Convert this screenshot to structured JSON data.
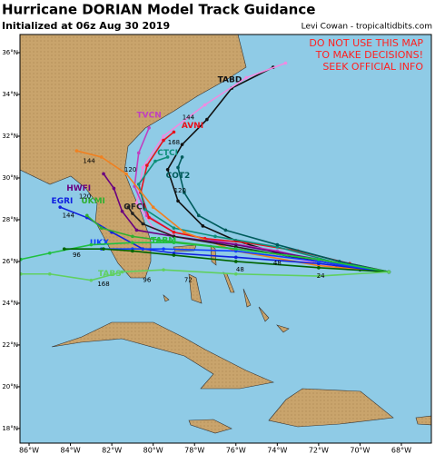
{
  "chart_data": {
    "type": "track-map",
    "title": "Hurricane DORIAN Model Track Guidance",
    "subtitle": "Initialized at 06z Aug 30 2019",
    "credit": "Levi Cowan - tropicaltidbits.com",
    "warning": [
      "DO NOT USE THIS MAP",
      "TO MAKE DECISIONS!",
      "SEEK OFFICIAL INFO"
    ],
    "xlim": [
      -86.44,
      -66.55
    ],
    "ylim": [
      17.3,
      36.87
    ],
    "xticks": [
      {
        "value": -86,
        "label": "86°W"
      },
      {
        "value": -84,
        "label": "84°W"
      },
      {
        "value": -82,
        "label": "82°W"
      },
      {
        "value": -80,
        "label": "80°W"
      },
      {
        "value": -78,
        "label": "78°W"
      },
      {
        "value": -76,
        "label": "76°W"
      },
      {
        "value": -74,
        "label": "74°W"
      },
      {
        "value": -72,
        "label": "72°W"
      },
      {
        "value": -70,
        "label": "70°W"
      },
      {
        "value": -68,
        "label": "68°W"
      }
    ],
    "yticks": [
      {
        "value": 18,
        "label": "18°N"
      },
      {
        "value": 20,
        "label": "20°N"
      },
      {
        "value": 22,
        "label": "22°N"
      },
      {
        "value": 24,
        "label": "24°N"
      },
      {
        "value": 26,
        "label": "26°N"
      },
      {
        "value": 28,
        "label": "28°N"
      },
      {
        "value": 30,
        "label": "30°N"
      },
      {
        "value": 32,
        "label": "32°N"
      },
      {
        "value": 34,
        "label": "34°N"
      },
      {
        "value": 36,
        "label": "36°N"
      }
    ],
    "series": [
      {
        "name": "TABD",
        "color": "#111111",
        "label_lon": -76.3,
        "label_lat": 34.7,
        "lon": [
          -68.6,
          -70,
          -72,
          -74,
          -76,
          -77.6,
          -78.8,
          -79.3,
          -78.6,
          -77.4,
          -76.2,
          -74.2
        ],
        "lat": [
          25.5,
          25.6,
          25.9,
          26.4,
          27,
          27.7,
          28.9,
          30.4,
          31.6,
          32.8,
          34.3,
          35.3
        ]
      },
      {
        "color": "#f08ae0",
        "lon": [
          -68.6,
          -71,
          -74,
          -76.5,
          -78.5,
          -80,
          -80.8,
          -80.5,
          -79.5,
          -77.5,
          -75.5,
          -73.6
        ],
        "lat": [
          25.5,
          25.7,
          26.3,
          26.8,
          27.1,
          27.6,
          28.8,
          30.5,
          32,
          33.5,
          34.8,
          35.5
        ]
      },
      {
        "name": "TVCN",
        "color": "#c040c0",
        "label_lon": -80.2,
        "label_lat": 33.0,
        "lon": [
          -68.6,
          -71,
          -74,
          -77,
          -79,
          -80.3,
          -80.9,
          -80.7,
          -80.2
        ],
        "lat": [
          25.5,
          25.8,
          26.5,
          27.0,
          27.4,
          28.2,
          29.6,
          31.2,
          32.4
        ]
      },
      {
        "name": "AVNI",
        "color": "#e8101a",
        "label_lon": -78.1,
        "label_lat": 32.5,
        "lon": [
          -68.6,
          -70.5,
          -73,
          -75.5,
          -77.5,
          -79,
          -80.2,
          -80.6,
          -80.3,
          -79.5,
          -79
        ],
        "lat": [
          25.5,
          25.9,
          26.5,
          26.9,
          27.1,
          27.4,
          28.1,
          29.3,
          30.6,
          31.8,
          32.2
        ]
      },
      {
        "name": "CTCI",
        "color": "#0e8f7a",
        "label_lon": -79.3,
        "label_lat": 31.2,
        "lon": [
          -68.6,
          -71,
          -74,
          -77,
          -79,
          -80.4,
          -80.7,
          -79.9,
          -79.3
        ],
        "lat": [
          25.5,
          25.9,
          26.7,
          27.2,
          27.6,
          28.5,
          29.7,
          30.8,
          31.0
        ]
      },
      {
        "name": "COT2",
        "color": "#005c5c",
        "label_lon": -78.8,
        "label_lat": 30.1,
        "lon": [
          -68.6,
          -71,
          -74,
          -76.5,
          -77.8,
          -78.5,
          -78.8,
          -78.6
        ],
        "lat": [
          25.5,
          26,
          26.8,
          27.5,
          28.2,
          29.3,
          30.5,
          31.0
        ]
      },
      {
        "color": "#f08020",
        "lon": [
          -68.6,
          -72,
          -76,
          -78.5,
          -80,
          -81.3,
          -82.5,
          -83.7
        ],
        "lat": [
          25.5,
          25.8,
          26.5,
          27.4,
          28.6,
          30.2,
          31.0,
          31.3
        ]
      },
      {
        "name": "HWFI",
        "color": "#6a0080",
        "label_lon": -83.6,
        "label_lat": 29.5,
        "lon": [
          -68.6,
          -72,
          -76,
          -79,
          -80.8,
          -81.5,
          -81.9,
          -82.4
        ],
        "lat": [
          25.5,
          26.1,
          26.8,
          27.2,
          27.5,
          28.4,
          29.5,
          30.2
        ]
      },
      {
        "name": "OFCI",
        "color": "#222222",
        "label_lon": -80.9,
        "label_lat": 28.6,
        "lon": [
          -68.6,
          -72,
          -76,
          -79,
          -80.5,
          -81,
          -81.2
        ],
        "lat": [
          25.5,
          26,
          26.7,
          27.2,
          27.8,
          28.3,
          28.6
        ]
      },
      {
        "name": "EGRI",
        "color": "#1020e0",
        "label_lon": -84.4,
        "label_lat": 28.9,
        "lon": [
          -68.6,
          -72,
          -76,
          -79,
          -80.5,
          -82,
          -83.2,
          -84.5
        ],
        "lat": [
          25.5,
          25.9,
          26.2,
          26.4,
          26.6,
          27.4,
          28.1,
          28.6
        ]
      },
      {
        "name": "UKMI",
        "color": "#30b030",
        "label_lon": -82.9,
        "label_lat": 28.9,
        "lon": [
          -68.6,
          -72,
          -76,
          -79.5,
          -81,
          -82.5,
          -83.2
        ],
        "lat": [
          25.5,
          26.1,
          26.6,
          27,
          27.2,
          27.6,
          28.2
        ]
      },
      {
        "name": "UKX",
        "color": "#1040ff",
        "label_lon": -82.6,
        "label_lat": 26.9,
        "lon": [
          -68.6,
          -72,
          -76,
          -79.5,
          -81,
          -82.5
        ],
        "lat": [
          25.5,
          26,
          26.5,
          26.6,
          26.6,
          26.6
        ]
      },
      {
        "name": "TABM",
        "color": "#20c040",
        "label_lon": -79.5,
        "label_lat": 27.0,
        "lon": [
          -68.6,
          -72,
          -76,
          -79,
          -81,
          -83,
          -85,
          -86.4
        ],
        "lat": [
          25.5,
          26.1,
          26.6,
          26.9,
          26.9,
          26.8,
          26.4,
          26.1
        ]
      },
      {
        "color": "#006400",
        "lon": [
          -68.6,
          -72,
          -76,
          -79,
          -81,
          -82.4,
          -84.3
        ],
        "lat": [
          25.5,
          25.7,
          26,
          26.3,
          26.5,
          26.6,
          26.6
        ]
      },
      {
        "name": "TABS",
        "color": "#60d060",
        "label_lon": -82.1,
        "label_lat": 25.4,
        "lon": [
          -68.6,
          -72,
          -76,
          -79.5,
          -81.5,
          -83,
          -85,
          -86.4
        ],
        "lat": [
          25.5,
          25.3,
          25.4,
          25.6,
          25.5,
          25.1,
          25.4,
          25.4
        ]
      }
    ],
    "annotations": [
      {
        "text": "144",
        "lon": -78.3,
        "lat": 32.9
      },
      {
        "text": "168",
        "lon": -79.0,
        "lat": 31.7
      },
      {
        "text": "120",
        "lon": -81.1,
        "lat": 30.4
      },
      {
        "text": "144",
        "lon": -83.1,
        "lat": 30.8
      },
      {
        "text": "120",
        "lon": -83.3,
        "lat": 29.1
      },
      {
        "text": "144",
        "lon": -84.1,
        "lat": 28.2
      },
      {
        "text": "96",
        "lon": -83.7,
        "lat": 26.3
      },
      {
        "text": "168",
        "lon": -82.4,
        "lat": 24.9
      },
      {
        "text": "96",
        "lon": -80.3,
        "lat": 25.1
      },
      {
        "text": "72",
        "lon": -78.3,
        "lat": 25.1
      },
      {
        "text": "48",
        "lon": -75.8,
        "lat": 25.6
      },
      {
        "text": "48",
        "lon": -74.0,
        "lat": 25.9
      },
      {
        "text": "24",
        "lon": -71.9,
        "lat": 25.3
      },
      {
        "text": "120",
        "lon": -78.7,
        "lat": 29.4
      }
    ]
  }
}
